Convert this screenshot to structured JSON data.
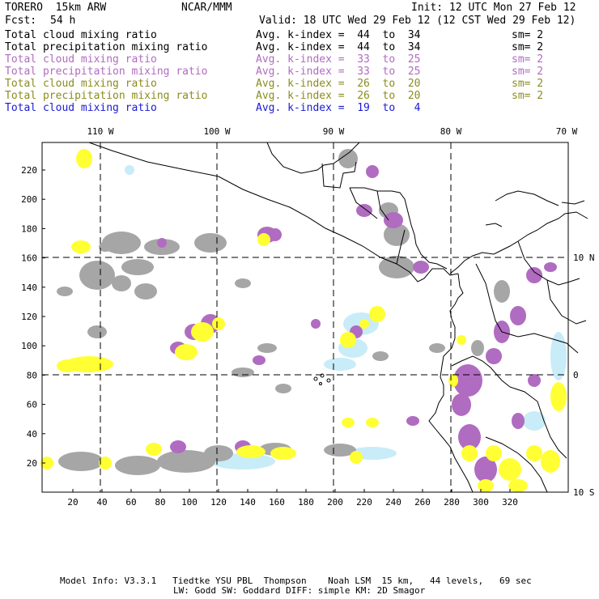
{
  "header": {
    "model": "TORERO  15km ARW",
    "center": "NCAR/MMM",
    "init": "Init: 12 UTC Mon 27 Feb 12",
    "fcst_label": "Fcst:",
    "fcst_value": "54 h",
    "valid": "Valid: 18 UTC Wed 29 Feb 12 (12 CST Wed 29 Feb 12)"
  },
  "legend": [
    {
      "field": "Total cloud mixing ratio",
      "index": "Avg. k-index =  44  to  34",
      "sm": "sm= 2",
      "color": "#000000"
    },
    {
      "field": "Total precipitation mixing ratio",
      "index": "Avg. k-index =  44  to  34",
      "sm": "sm= 2",
      "color": "#000000"
    },
    {
      "field": "Total cloud mixing ratio",
      "index": "Avg. k-index =  33  to  25",
      "sm": "sm= 2",
      "color": "#b06cc0"
    },
    {
      "field": "Total precipitation mixing ratio",
      "index": "Avg. k-index =  33  to  25",
      "sm": "sm= 2",
      "color": "#b06cc0"
    },
    {
      "field": "Total cloud mixing ratio",
      "index": "Avg. k-index =  26  to  20",
      "sm": "sm= 2",
      "color": "#8c8c1e"
    },
    {
      "field": "Total precipitation mixing ratio",
      "index": "Avg. k-index =  26  to  20",
      "sm": "sm= 2",
      "color": "#8c8c1e"
    },
    {
      "field": "Total cloud mixing ratio",
      "index": "Avg. k-index =  19  to   4",
      "sm": "",
      "color": "#1a1ad6"
    }
  ],
  "map": {
    "lon_labels": [
      "110 W",
      "100 W",
      "90 W",
      "80 W",
      "70 W"
    ],
    "lat_labels": [
      "10 N",
      "0",
      "10 S"
    ],
    "y_ticks": [
      "20",
      "40",
      "60",
      "80",
      "100",
      "120",
      "140",
      "160",
      "180",
      "200",
      "220"
    ],
    "x_ticks": [
      "20",
      "40",
      "60",
      "80",
      "100",
      "120",
      "140",
      "160",
      "180",
      "200",
      "220",
      "240",
      "260",
      "280",
      "300",
      "320"
    ],
    "colors": {
      "mid_cloud": "#a6a6a6",
      "low_cloud": "#b06cc0",
      "precip": "#ffff33",
      "high_cloud": "#c8ecf8",
      "coast": "#000000"
    }
  },
  "footer": {
    "line1": "Model Info: V3.3.1   Tiedtke YSU PBL  Thompson    Noah LSM  15 km,   44 levels,   69 sec",
    "line2": "LW: Godd SW: Goddard DIFF: simple KM: 2D Smagor"
  }
}
